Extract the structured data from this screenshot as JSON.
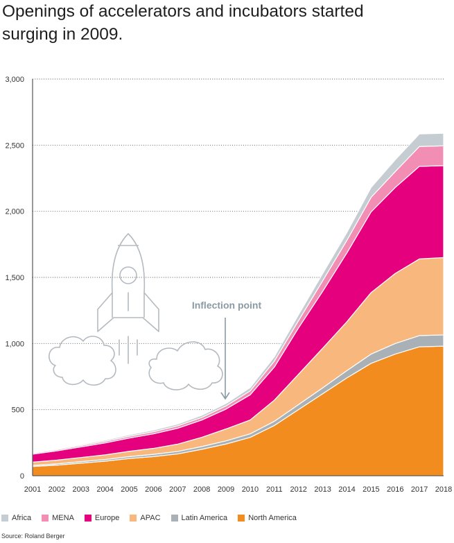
{
  "title": "Openings of accelerators and incubators started surging in 2009.",
  "source": "Source: Roland Berger",
  "annotation": "Inflection point",
  "chart_data": {
    "type": "area",
    "stacked": true,
    "title": "Openings of accelerators and incubators started surging in 2009.",
    "x": [
      "2001",
      "2002",
      "2003",
      "2004",
      "2005",
      "2006",
      "2007",
      "2008",
      "2009",
      "2010",
      "2011",
      "2012",
      "2013",
      "2014",
      "2015",
      "2016",
      "2017",
      "2018"
    ],
    "ylim": [
      0,
      3000
    ],
    "yticks": [
      0,
      500,
      1000,
      1500,
      2000,
      2500,
      3000
    ],
    "ytick_labels": [
      "0",
      "500",
      "1,000",
      "1,500",
      "2,000",
      "2,500",
      "3,000"
    ],
    "grid": "horizontal dotted",
    "legend_position": "bottom",
    "series": [
      {
        "name": "North America",
        "color": "#F28C1E",
        "values": [
          70,
          80,
          95,
          110,
          130,
          145,
          165,
          200,
          240,
          290,
          380,
          500,
          620,
          740,
          850,
          920,
          975,
          980
        ]
      },
      {
        "name": "Latin America",
        "color": "#A9B1B7",
        "values": [
          8,
          10,
          12,
          13,
          15,
          17,
          19,
          21,
          24,
          27,
          32,
          38,
          45,
          55,
          70,
          80,
          85,
          85
        ]
      },
      {
        "name": "APAC",
        "color": "#F8B77C",
        "values": [
          25,
          28,
          31,
          35,
          40,
          45,
          55,
          70,
          90,
          105,
          160,
          230,
          300,
          370,
          465,
          530,
          580,
          585
        ]
      },
      {
        "name": "Europe",
        "color": "#E5007D",
        "values": [
          60,
          70,
          80,
          90,
          100,
          110,
          120,
          130,
          150,
          190,
          250,
          350,
          430,
          520,
          610,
          650,
          700,
          695
        ]
      },
      {
        "name": "MENA",
        "color": "#F28EB3",
        "values": [
          8,
          9,
          10,
          12,
          14,
          16,
          18,
          20,
          24,
          30,
          45,
          55,
          80,
          95,
          110,
          120,
          150,
          150
        ]
      },
      {
        "name": "Africa",
        "color": "#C6CDD2",
        "values": [
          6,
          7,
          8,
          9,
          11,
          12,
          14,
          16,
          18,
          24,
          33,
          45,
          55,
          60,
          75,
          90,
          95,
          95
        ]
      }
    ],
    "legend_order": [
      "Africa",
      "MENA",
      "Europe",
      "APAC",
      "Latin America",
      "North America"
    ]
  }
}
